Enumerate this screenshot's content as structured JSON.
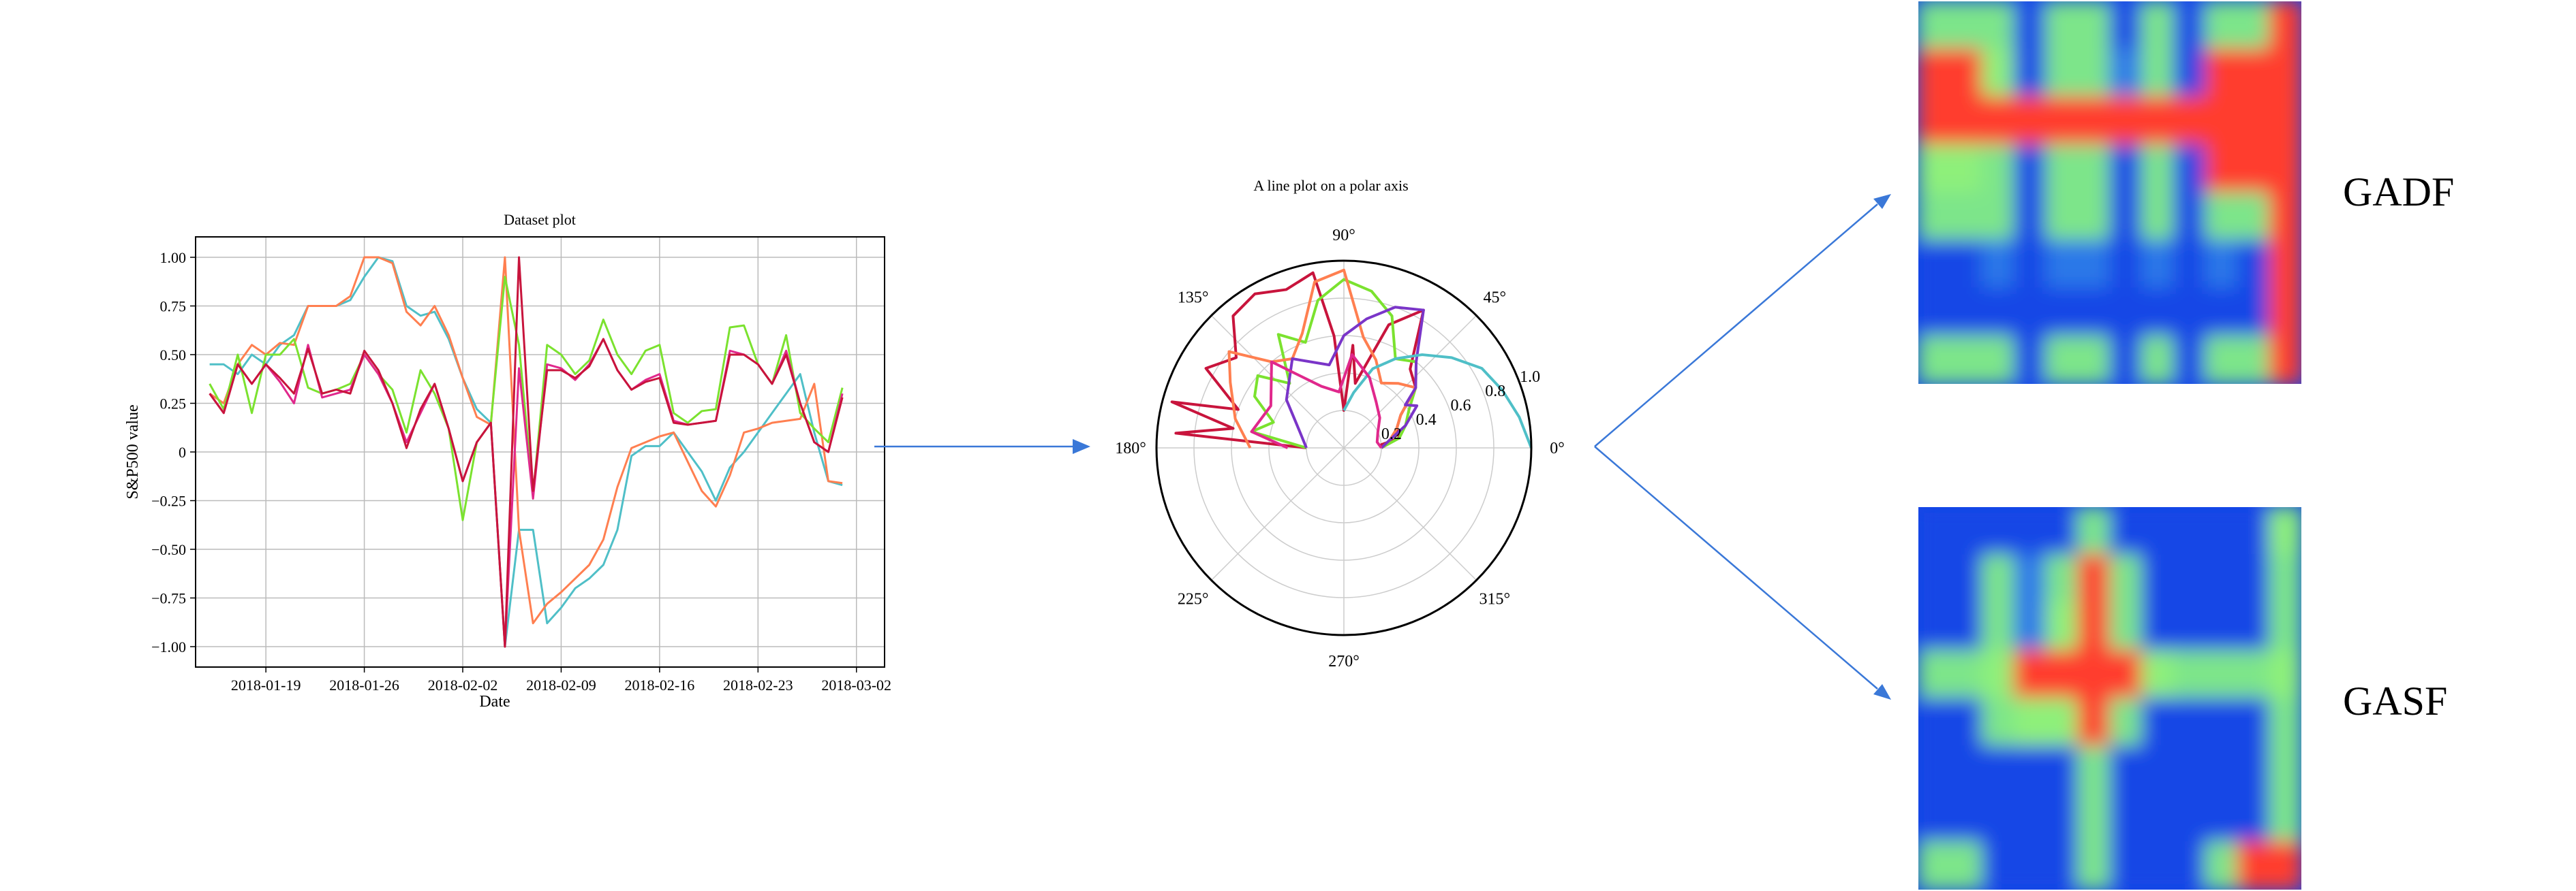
{
  "colors": {
    "orange": "#ff7f50",
    "cyan": "#4fbfc7",
    "green": "#7be22f",
    "crimson": "#c8143c",
    "magenta": "#e0288c",
    "purple": "#7a35c8",
    "arrow": "#3a78d8",
    "grid": "#bbbbbb"
  },
  "heatmap_colormap": [
    "#1446e6",
    "#2a78e8",
    "#7de58a",
    "#8ef07a",
    "#ff3c2d"
  ],
  "chart_data": [
    {
      "type": "line",
      "title": "Dataset plot",
      "xlabel": "Date",
      "ylabel": "S&P500 value",
      "ylim": [
        -1.0,
        1.0
      ],
      "yticks": [
        "1.00",
        "0.75",
        "0.50",
        "0.25",
        "0",
        "−0.25",
        "−0.50",
        "−0.75",
        "−1.00"
      ],
      "ytick_values": [
        1.0,
        0.75,
        0.5,
        0.25,
        0,
        -0.25,
        -0.5,
        -0.75,
        -1.0
      ],
      "xticks": [
        "2018-01-19",
        "2018-01-26",
        "2018-02-02",
        "2018-02-09",
        "2018-02-16",
        "2018-02-23",
        "2018-03-02"
      ],
      "xtick_values": [
        4,
        11,
        18,
        25,
        32,
        39,
        46
      ],
      "xlim": [
        -1,
        48
      ],
      "grid": true,
      "x": [
        0,
        1,
        2,
        3,
        4,
        5,
        6,
        7,
        8,
        9,
        10,
        11,
        12,
        13,
        14,
        15,
        16,
        17,
        18,
        19,
        20,
        21,
        22,
        23,
        24,
        25,
        26,
        27,
        28,
        29,
        30,
        31,
        32,
        33,
        34,
        35,
        36,
        37,
        38,
        39,
        40,
        41,
        42,
        43,
        44,
        45
      ],
      "series": [
        {
          "color": "#4fbfc7",
          "values": [
            0.45,
            0.45,
            0.4,
            0.5,
            0.45,
            0.55,
            0.6,
            0.75,
            0.75,
            0.75,
            0.78,
            0.9,
            1.0,
            0.98,
            0.75,
            0.7,
            0.72,
            0.58,
            0.38,
            0.22,
            0.15,
            -1.0,
            -0.4,
            -0.4,
            -0.88,
            -0.8,
            -0.7,
            -0.65,
            -0.58,
            -0.4,
            -0.02,
            0.03,
            0.03,
            0.1,
            0.0,
            -0.1,
            -0.25,
            -0.08,
            0.0,
            0.1,
            0.2,
            0.3,
            0.4,
            0.1,
            -0.15,
            -0.17
          ]
        },
        {
          "color": "#ff7f50",
          "values": [
            0.3,
            0.25,
            0.45,
            0.55,
            0.5,
            0.56,
            0.55,
            0.75,
            0.75,
            0.75,
            0.8,
            1.0,
            1.0,
            0.97,
            0.72,
            0.65,
            0.75,
            0.6,
            0.38,
            0.18,
            0.14,
            1.0,
            -0.4,
            -0.88,
            -0.78,
            -0.72,
            -0.65,
            -0.58,
            -0.45,
            -0.18,
            0.02,
            0.05,
            0.08,
            0.1,
            -0.05,
            -0.2,
            -0.28,
            -0.12,
            0.1,
            0.12,
            0.15,
            0.16,
            0.17,
            0.35,
            -0.15,
            -0.16
          ]
        },
        {
          "color": "#7be22f",
          "values": [
            0.35,
            0.22,
            0.5,
            0.2,
            0.5,
            0.5,
            0.58,
            0.33,
            0.3,
            0.32,
            0.35,
            0.5,
            0.4,
            0.32,
            0.1,
            0.42,
            0.3,
            0.12,
            -0.35,
            0.05,
            0.15,
            0.9,
            0.55,
            -0.22,
            0.55,
            0.5,
            0.4,
            0.47,
            0.68,
            0.5,
            0.4,
            0.52,
            0.55,
            0.2,
            0.15,
            0.21,
            0.22,
            0.64,
            0.65,
            0.45,
            0.35,
            0.6,
            0.2,
            0.12,
            0.05,
            0.33
          ]
        },
        {
          "color": "#e0288c",
          "values": [
            0.3,
            0.2,
            0.45,
            0.35,
            0.45,
            0.36,
            0.25,
            0.55,
            0.28,
            0.3,
            0.32,
            0.5,
            0.4,
            0.25,
            0.05,
            0.2,
            0.35,
            0.12,
            -0.15,
            0.05,
            0.15,
            -1.0,
            0.43,
            -0.24,
            0.45,
            0.43,
            0.37,
            0.45,
            0.58,
            0.42,
            0.32,
            0.37,
            0.4,
            0.16,
            0.14,
            0.15,
            0.16,
            0.52,
            0.5,
            0.45,
            0.35,
            0.52,
            0.25,
            0.05,
            0.0,
            0.3
          ]
        },
        {
          "color": "#c8143c",
          "values": [
            0.3,
            0.2,
            0.45,
            0.35,
            0.45,
            0.38,
            0.3,
            0.53,
            0.3,
            0.32,
            0.3,
            0.52,
            0.42,
            0.25,
            0.02,
            0.22,
            0.35,
            0.12,
            -0.15,
            0.05,
            0.15,
            -1.0,
            1.0,
            -0.2,
            0.42,
            0.42,
            0.38,
            0.44,
            0.58,
            0.42,
            0.32,
            0.36,
            0.38,
            0.15,
            0.14,
            0.15,
            0.16,
            0.5,
            0.5,
            0.45,
            0.35,
            0.5,
            0.25,
            0.05,
            0.0,
            0.28
          ]
        }
      ]
    },
    {
      "type": "line",
      "subtype": "polar",
      "title": "A line plot on a polar axis",
      "rlim": [
        0,
        1.0
      ],
      "rticks": [
        "0.2",
        "0.4",
        "0.6",
        "0.8",
        "1.0"
      ],
      "rtick_values": [
        0.2,
        0.4,
        0.6,
        0.8,
        1.0
      ],
      "angle_labels": [
        "0°",
        "45°",
        "90°",
        "135°",
        "180°",
        "225°",
        "270°",
        "315°"
      ],
      "angle_values": [
        0,
        45,
        90,
        135,
        180,
        225,
        270,
        315
      ],
      "series": [
        {
          "color": "#c8143c",
          "theta": [
            180,
            175,
            170,
            165,
            160,
            150,
            140,
            130,
            120,
            110,
            100,
            95,
            90,
            85,
            80,
            70,
            60,
            50,
            40,
            30,
            20,
            10,
            5,
            0
          ],
          "r": [
            0.2,
            0.9,
            0.6,
            0.95,
            0.6,
            0.85,
            0.75,
            0.92,
            0.95,
            0.9,
            0.95,
            0.6,
            0.2,
            0.55,
            0.35,
            0.7,
            0.85,
            0.55,
            0.5,
            0.35,
            0.3,
            0.3,
            0.2,
            0.2
          ]
        },
        {
          "color": "#7be22f",
          "theta": [
            180,
            170,
            160,
            150,
            140,
            130,
            120,
            110,
            100,
            90,
            80,
            70,
            60,
            50,
            40,
            30,
            20,
            10,
            0
          ],
          "r": [
            0.2,
            0.5,
            0.4,
            0.55,
            0.6,
            0.45,
            0.7,
            0.6,
            0.8,
            0.9,
            0.85,
            0.75,
            0.55,
            0.6,
            0.5,
            0.4,
            0.35,
            0.3,
            0.2
          ]
        },
        {
          "color": "#ff7f50",
          "theta": [
            180,
            165,
            150,
            140,
            130,
            120,
            110,
            100,
            90,
            80,
            70,
            60,
            50,
            40,
            30,
            20,
            10,
            0
          ],
          "r": [
            0.5,
            0.6,
            0.7,
            0.8,
            0.6,
            0.55,
            0.65,
            0.9,
            0.95,
            0.6,
            0.5,
            0.4,
            0.45,
            0.5,
            0.35,
            0.3,
            0.25,
            0.2
          ]
        },
        {
          "color": "#7a35c8",
          "theta": [
            180,
            160,
            140,
            120,
            100,
            90,
            80,
            70,
            60,
            50,
            40,
            35,
            30,
            20,
            10,
            0
          ],
          "r": [
            0.2,
            0.25,
            0.4,
            0.55,
            0.45,
            0.6,
            0.7,
            0.8,
            0.85,
            0.6,
            0.5,
            0.4,
            0.45,
            0.35,
            0.25,
            0.2
          ]
        },
        {
          "color": "#4fbfc7",
          "theta": [
            90,
            80,
            70,
            60,
            50,
            40,
            30,
            20,
            10,
            0
          ],
          "r": [
            0.2,
            0.3,
            0.45,
            0.55,
            0.65,
            0.75,
            0.85,
            0.9,
            0.95,
            1.0
          ]
        },
        {
          "color": "#e0288c",
          "theta": [
            180,
            170,
            150,
            130,
            110,
            95,
            85,
            70,
            55,
            40,
            25,
            10,
            0
          ],
          "r": [
            0.3,
            0.5,
            0.45,
            0.6,
            0.35,
            0.3,
            0.5,
            0.4,
            0.3,
            0.25,
            0.2,
            0.18,
            0.2
          ]
        }
      ]
    }
  ],
  "heatmaps": {
    "gadf": {
      "label": "GADF",
      "grid": [
        [
          2,
          2,
          2,
          0,
          2,
          2,
          0,
          2,
          0,
          2,
          2,
          4
        ],
        [
          4,
          4,
          3,
          0,
          2,
          2,
          1,
          2,
          0,
          4,
          4,
          4
        ],
        [
          4,
          4,
          4,
          4,
          4,
          4,
          4,
          4,
          4,
          4,
          4,
          4
        ],
        [
          3,
          3,
          2,
          0,
          2,
          2,
          0,
          2,
          0,
          4,
          4,
          4
        ],
        [
          2,
          2,
          2,
          0,
          2,
          2,
          0,
          2,
          0,
          2,
          2,
          4
        ],
        [
          0,
          0,
          1,
          0,
          1,
          1,
          0,
          1,
          0,
          1,
          0,
          4
        ],
        [
          0,
          0,
          0,
          0,
          0,
          0,
          0,
          0,
          0,
          0,
          0,
          4
        ],
        [
          2,
          2,
          2,
          0,
          2,
          2,
          0,
          2,
          0,
          2,
          2,
          4
        ]
      ]
    },
    "gasf": {
      "label": "GASF",
      "grid": [
        [
          0,
          0,
          0,
          0,
          0,
          2,
          0,
          0,
          0,
          0,
          0,
          3
        ],
        [
          0,
          0,
          2,
          1,
          2,
          4,
          2,
          0,
          0,
          0,
          0,
          2
        ],
        [
          0,
          0,
          2,
          1,
          3,
          4,
          2,
          0,
          0,
          0,
          0,
          2
        ],
        [
          2,
          2,
          3,
          4,
          4,
          4,
          4,
          3,
          2,
          2,
          2,
          3
        ],
        [
          0,
          0,
          2,
          3,
          3,
          4,
          2,
          0,
          0,
          0,
          0,
          2
        ],
        [
          0,
          0,
          0,
          0,
          0,
          2,
          0,
          0,
          0,
          0,
          0,
          2
        ],
        [
          0,
          0,
          0,
          0,
          0,
          2,
          0,
          0,
          0,
          0,
          0,
          2
        ],
        [
          2,
          2,
          0,
          0,
          0,
          2,
          0,
          0,
          0,
          2,
          4,
          4
        ]
      ]
    }
  }
}
